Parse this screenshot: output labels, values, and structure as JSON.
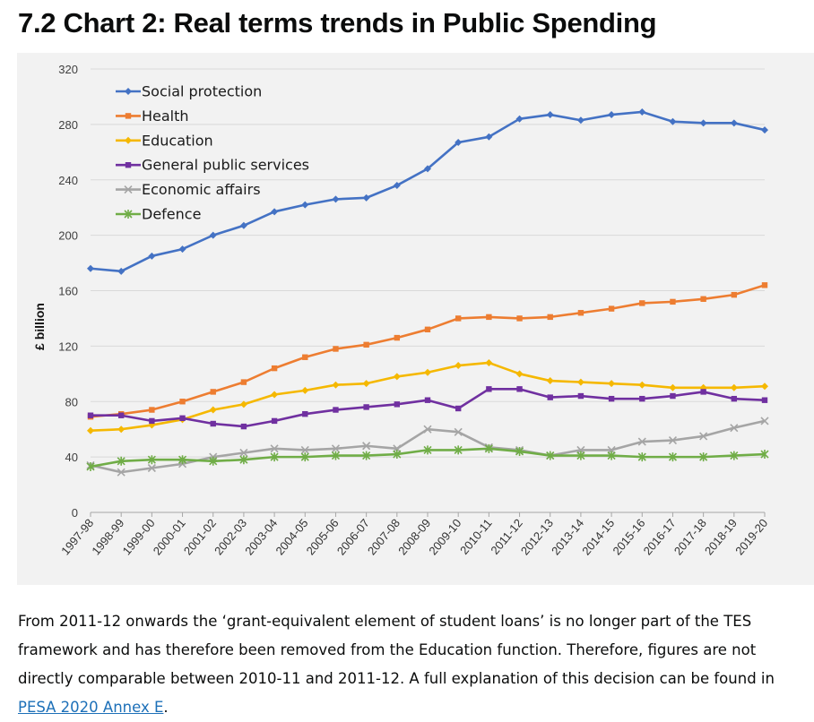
{
  "heading": "7.2 Chart 2: Real terms trends in Public Spending",
  "chart_data": {
    "type": "line",
    "title": "",
    "xlabel": "",
    "ylabel": "£ billion",
    "ylim": [
      0,
      320
    ],
    "yticks": [
      0,
      40,
      80,
      120,
      160,
      200,
      240,
      280,
      320
    ],
    "grid": "horizontal",
    "legend_position": "top-left",
    "categories": [
      "1997-98",
      "1998-99",
      "1999-00",
      "2000-01",
      "2001-02",
      "2002-03",
      "2003-04",
      "2004-05",
      "2005-06",
      "2006-07",
      "2007-08",
      "2008-09",
      "2009-10",
      "2010-11",
      "2011-12",
      "2012-13",
      "2013-14",
      "2014-15",
      "2015-16",
      "2016-17",
      "2017-18",
      "2018-19",
      "2019-20"
    ],
    "series": [
      {
        "name": "Social protection",
        "color": "#4472c4",
        "marker": "diamond",
        "values": [
          176,
          174,
          185,
          190,
          200,
          207,
          217,
          222,
          226,
          227,
          236,
          248,
          267,
          271,
          284,
          287,
          283,
          287,
          289,
          282,
          281,
          281,
          276
        ]
      },
      {
        "name": "Health",
        "color": "#ed7d31",
        "marker": "square",
        "values": [
          69,
          71,
          74,
          80,
          87,
          94,
          104,
          112,
          118,
          121,
          126,
          132,
          140,
          141,
          140,
          141,
          144,
          147,
          151,
          152,
          154,
          157,
          164
        ]
      },
      {
        "name": "Education",
        "color": "#f5b800",
        "marker": "diamond",
        "values": [
          59,
          60,
          63,
          67,
          74,
          78,
          85,
          88,
          92,
          93,
          98,
          101,
          106,
          108,
          100,
          95,
          94,
          93,
          92,
          90,
          90,
          90,
          91
        ]
      },
      {
        "name": "General public services",
        "color": "#7030a0",
        "marker": "square",
        "values": [
          70,
          70,
          66,
          68,
          64,
          62,
          66,
          71,
          74,
          76,
          78,
          81,
          75,
          89,
          89,
          83,
          84,
          82,
          82,
          84,
          87,
          82,
          81
        ]
      },
      {
        "name": "Economic affairs",
        "color": "#a5a5a5",
        "marker": "x",
        "values": [
          34,
          29,
          32,
          35,
          40,
          43,
          46,
          45,
          46,
          48,
          46,
          60,
          58,
          47,
          45,
          41,
          45,
          45,
          51,
          52,
          55,
          61,
          66
        ]
      },
      {
        "name": "Defence",
        "color": "#70ad47",
        "marker": "asterisk",
        "values": [
          33,
          37,
          38,
          38,
          37,
          38,
          40,
          40,
          41,
          41,
          42,
          45,
          45,
          46,
          44,
          41,
          41,
          41,
          40,
          40,
          40,
          41,
          42
        ]
      }
    ]
  },
  "note": {
    "text": "From 2011-12 onwards the ‘grant-equivalent element of student loans’ is no longer part of the TES framework and has therefore been removed from the Education function. Therefore, figures are not directly comparable between 2010-11 and 2011-12. A full explanation of this decision can be found in ",
    "link_text": "PESA 2020 Annex E",
    "end": "."
  }
}
